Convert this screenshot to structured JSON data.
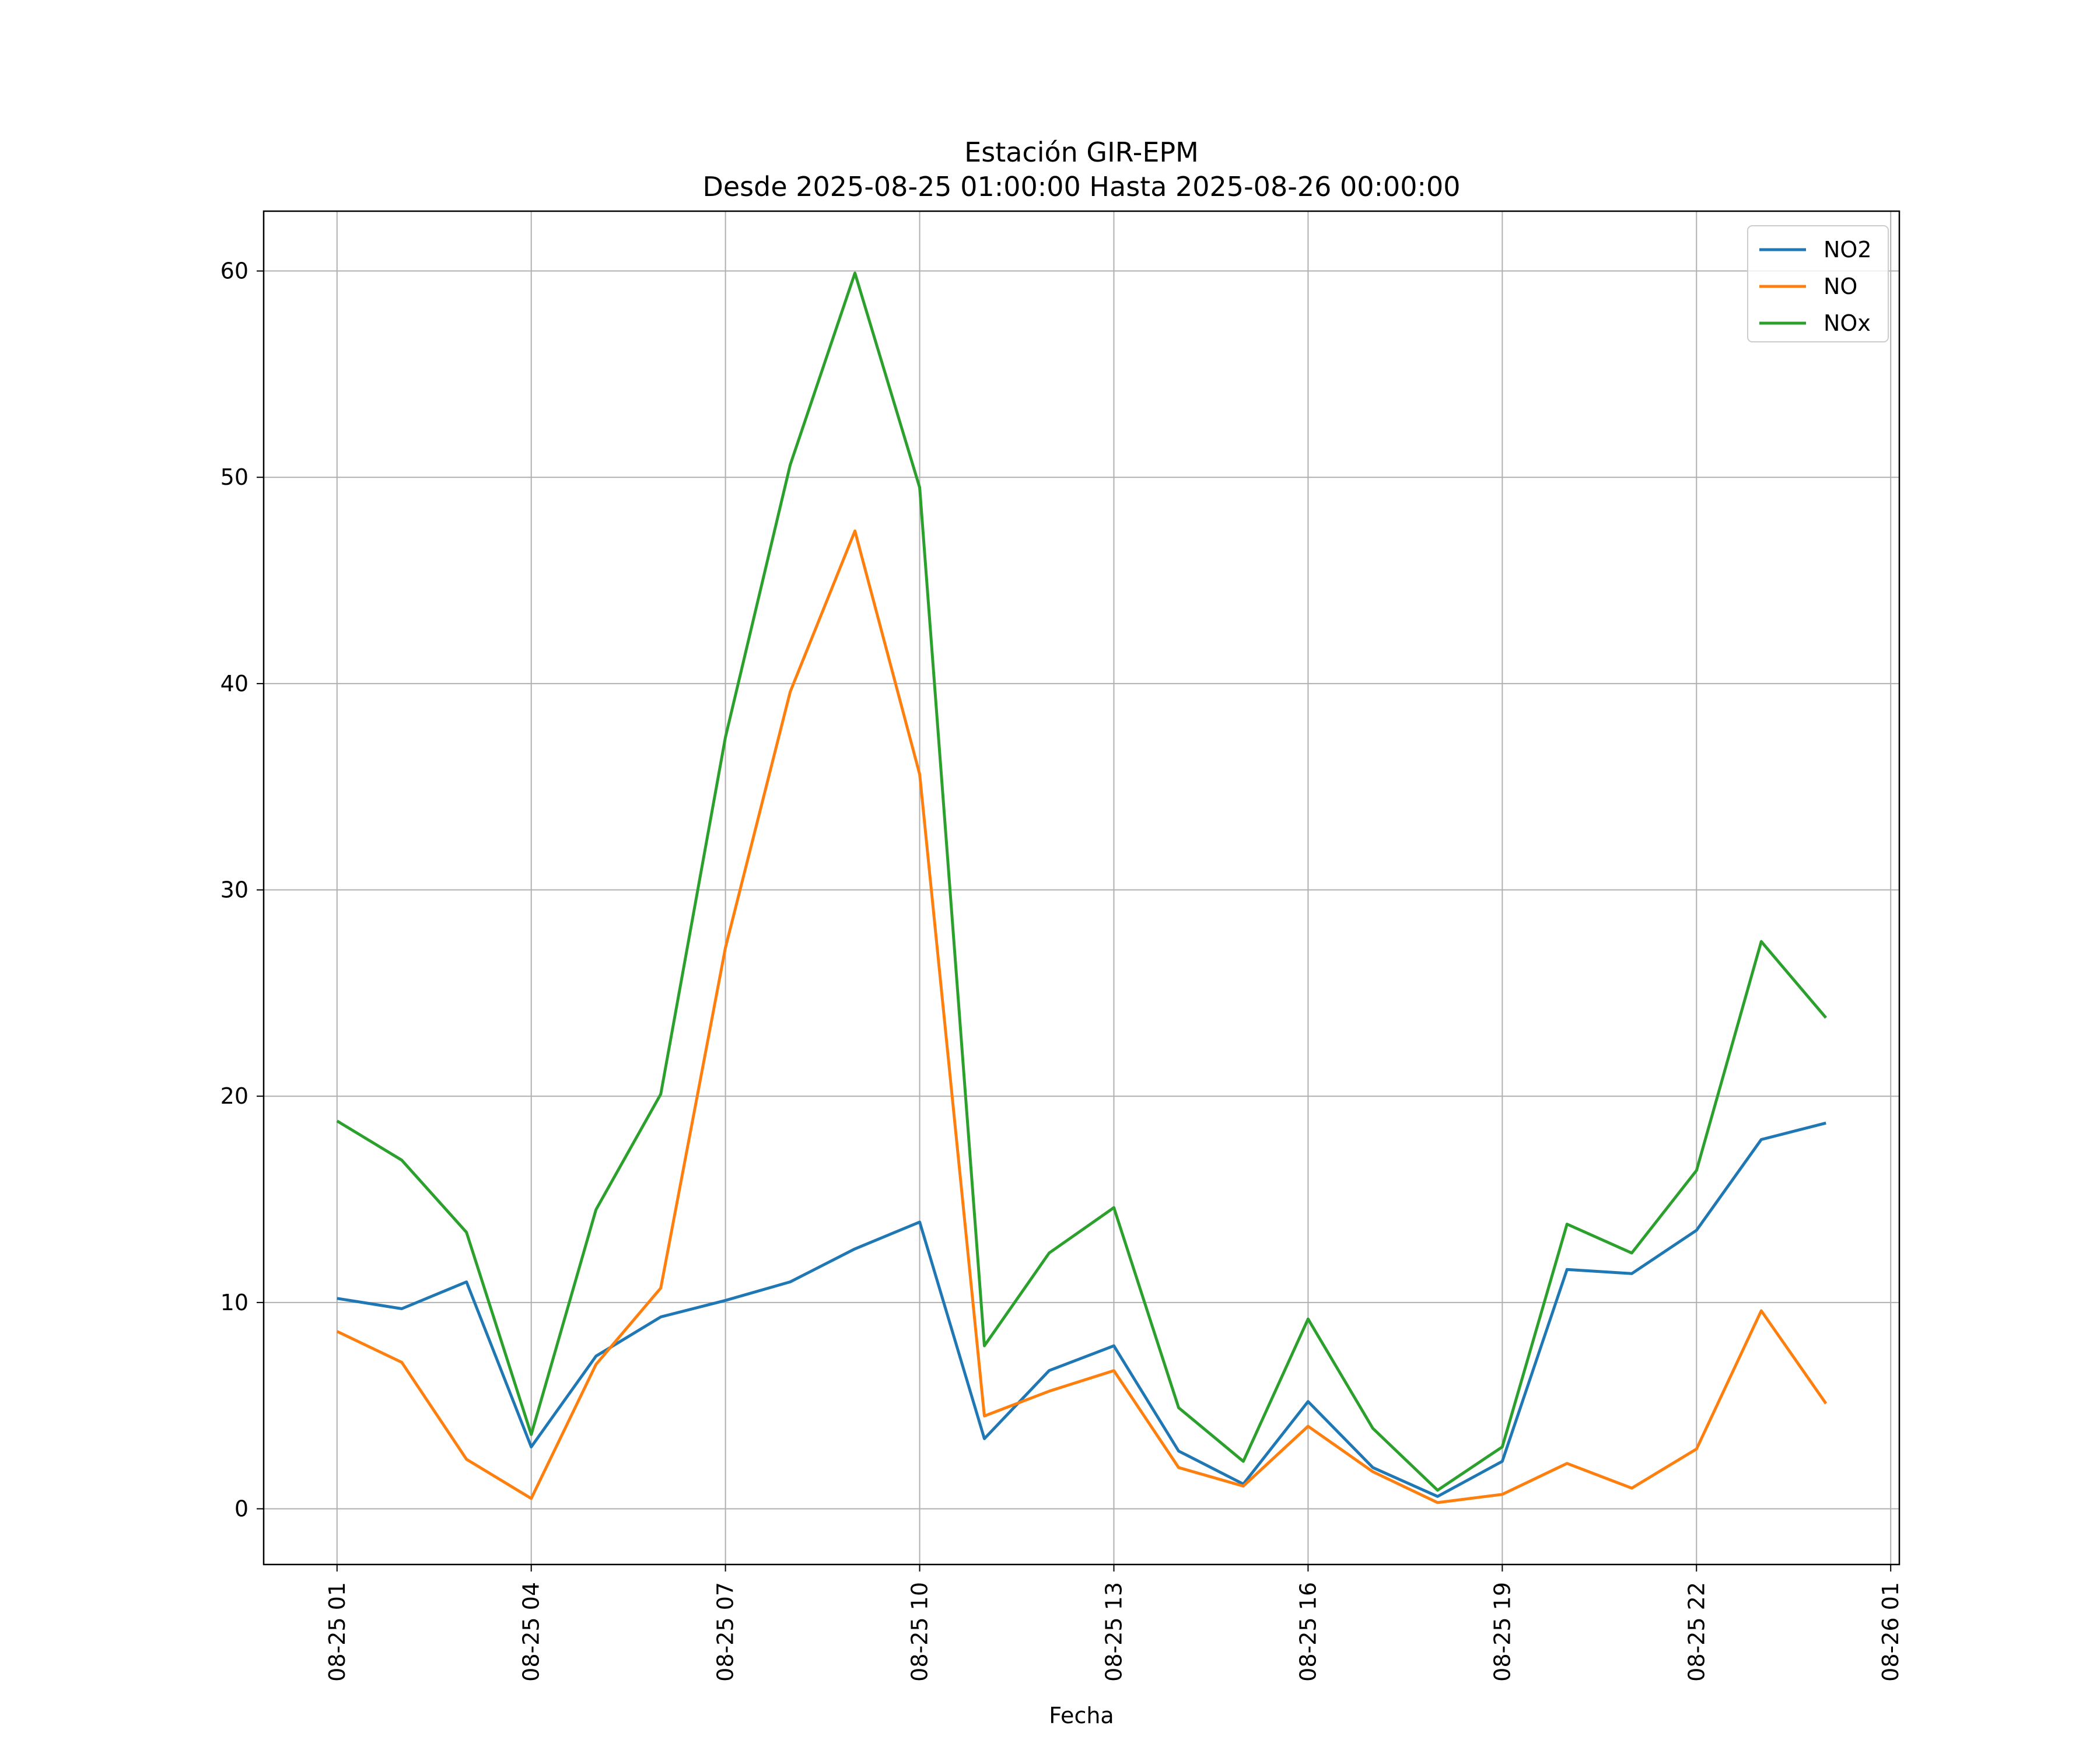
{
  "chart_data": {
    "type": "line",
    "title": "Estación GIR-EPM",
    "subtitle": "Desde 2025-08-25 01:00:00 Hasta 2025-08-26 00:00:00",
    "xlabel": "Fecha",
    "ylabel": "",
    "xlim": [
      "2025-08-24 23:52",
      "2025-08-26 01:08"
    ],
    "ylim": [
      -2.7,
      62.9
    ],
    "x_ticks": [
      {
        "date": "2025-08-25 01:00",
        "label": "08-25 01"
      },
      {
        "date": "2025-08-25 04:00",
        "label": "08-25 04"
      },
      {
        "date": "2025-08-25 07:00",
        "label": "08-25 07"
      },
      {
        "date": "2025-08-25 10:00",
        "label": "08-25 10"
      },
      {
        "date": "2025-08-25 13:00",
        "label": "08-25 13"
      },
      {
        "date": "2025-08-25 16:00",
        "label": "08-25 16"
      },
      {
        "date": "2025-08-25 19:00",
        "label": "08-25 19"
      },
      {
        "date": "2025-08-25 22:00",
        "label": "08-25 22"
      },
      {
        "date": "2025-08-26 01:00",
        "label": "08-26 01"
      }
    ],
    "y_ticks": [
      0,
      10,
      20,
      30,
      40,
      50,
      60
    ],
    "grid": true,
    "legend_position": "top-right",
    "x": [
      "2025-08-25 01:00",
      "2025-08-25 02:00",
      "2025-08-25 03:00",
      "2025-08-25 04:00",
      "2025-08-25 05:00",
      "2025-08-25 06:00",
      "2025-08-25 07:00",
      "2025-08-25 08:00",
      "2025-08-25 09:00",
      "2025-08-25 10:00",
      "2025-08-25 11:00",
      "2025-08-25 12:00",
      "2025-08-25 13:00",
      "2025-08-25 14:00",
      "2025-08-25 15:00",
      "2025-08-25 16:00",
      "2025-08-25 17:00",
      "2025-08-25 18:00",
      "2025-08-25 19:00",
      "2025-08-25 20:00",
      "2025-08-25 21:00",
      "2025-08-25 22:00",
      "2025-08-25 23:00",
      "2025-08-26 00:00"
    ],
    "series": [
      {
        "name": "NO2",
        "color": "#1f77b4",
        "values": [
          10.2,
          9.7,
          11.0,
          3.0,
          7.4,
          9.3,
          10.1,
          11.0,
          12.6,
          13.9,
          3.4,
          6.7,
          7.9,
          2.8,
          1.2,
          5.2,
          2.0,
          0.6,
          2.3,
          11.6,
          11.4,
          13.5,
          17.9,
          18.7
        ]
      },
      {
        "name": "NO",
        "color": "#ff7f0e",
        "values": [
          8.6,
          7.1,
          2.4,
          0.5,
          7.0,
          10.7,
          27.2,
          39.6,
          47.4,
          35.6,
          4.5,
          5.7,
          6.7,
          2.0,
          1.1,
          4.0,
          1.8,
          0.3,
          0.7,
          2.2,
          1.0,
          2.9,
          9.6,
          5.1
        ]
      },
      {
        "name": "NOx",
        "color": "#2ca02c",
        "values": [
          18.8,
          16.9,
          13.4,
          3.6,
          14.5,
          20.1,
          37.4,
          50.6,
          59.9,
          49.5,
          7.9,
          12.4,
          14.6,
          4.9,
          2.3,
          9.2,
          3.9,
          0.9,
          3.0,
          13.8,
          12.4,
          16.4,
          27.5,
          23.8
        ]
      }
    ]
  }
}
